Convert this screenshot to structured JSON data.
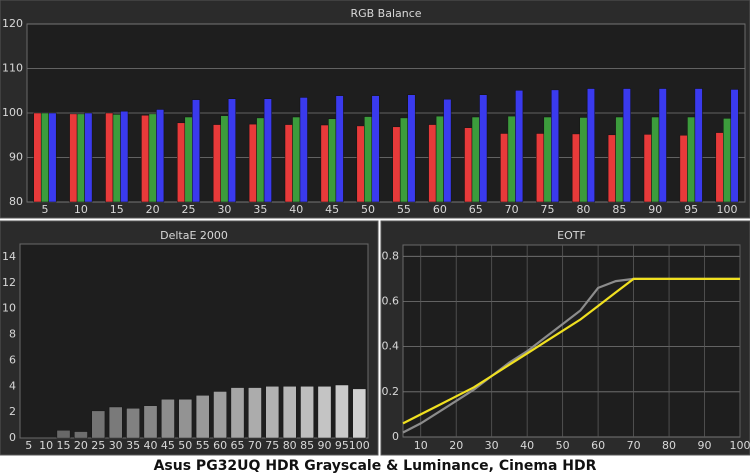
{
  "caption": "Asus PG32UQ HDR Grayscale & Luminance, Cinema HDR",
  "chart_data": [
    {
      "type": "bar",
      "title": "RGB Balance",
      "categories": [
        "5",
        "10",
        "15",
        "20",
        "25",
        "30",
        "35",
        "40",
        "45",
        "50",
        "55",
        "60",
        "65",
        "70",
        "75",
        "80",
        "85",
        "90",
        "95",
        "100"
      ],
      "series": [
        {
          "color": "#e83a3a",
          "values": [
            100,
            99.8,
            100,
            99.5,
            97.8,
            97.4,
            97.5,
            97.4,
            97.3,
            97.1,
            96.9,
            97.4,
            96.7,
            95.4,
            95.4,
            95.3,
            95.1,
            95.2,
            95.0,
            95.6
          ]
        },
        {
          "color": "#3c9c3c",
          "values": [
            100,
            99.8,
            99.7,
            99.8,
            99.1,
            99.4,
            98.9,
            99.1,
            98.7,
            99.2,
            98.9,
            99.3,
            99.1,
            99.3,
            99.1,
            99.0,
            99.1,
            99.1,
            99.1,
            98.8
          ]
        },
        {
          "color": "#3a3aee",
          "values": [
            100,
            100,
            100.4,
            100.8,
            103,
            103.2,
            103.2,
            103.5,
            103.9,
            103.9,
            104.1,
            103.1,
            104.1,
            105.1,
            105.2,
            105.5,
            105.5,
            105.5,
            105.5,
            105.3
          ]
        }
      ],
      "ylim": [
        80,
        120
      ],
      "yticks": [
        80,
        90,
        100,
        110,
        120
      ],
      "grid": true
    },
    {
      "type": "bar",
      "title": "DeltaE 2000",
      "categories": [
        "5",
        "10",
        "15",
        "20",
        "25",
        "30",
        "35",
        "40",
        "45",
        "50",
        "55",
        "60",
        "65",
        "70",
        "75",
        "80",
        "85",
        "90",
        "95",
        "100"
      ],
      "values": [
        0,
        0,
        0.6,
        0.5,
        2.1,
        2.4,
        2.3,
        2.5,
        3.0,
        3.0,
        3.3,
        3.6,
        3.9,
        3.9,
        4.0,
        4.0,
        4.0,
        4.0,
        4.1,
        3.8
      ],
      "color": "#d0d0d0",
      "ylim": [
        0,
        15
      ],
      "yticks": [
        0,
        2,
        4,
        6,
        8,
        10,
        12,
        14
      ],
      "grid": false
    },
    {
      "type": "line",
      "title": "EOTF",
      "x": [
        5,
        10,
        15,
        20,
        25,
        30,
        35,
        40,
        45,
        50,
        55,
        60,
        65,
        70,
        75,
        80,
        85,
        90,
        95,
        100
      ],
      "series": [
        {
          "color": "#8c8c8c",
          "values": [
            0.02,
            0.06,
            0.11,
            0.16,
            0.21,
            0.27,
            0.33,
            0.38,
            0.44,
            0.5,
            0.56,
            0.66,
            0.69,
            0.7,
            0.7,
            0.7,
            0.7,
            0.7,
            0.7,
            0.7
          ]
        },
        {
          "color": "#f0e020",
          "values": [
            0.06,
            0.1,
            0.14,
            0.18,
            0.22,
            0.27,
            0.32,
            0.37,
            0.42,
            0.47,
            0.52,
            0.58,
            0.64,
            0.7,
            0.7,
            0.7,
            0.7,
            0.7,
            0.7,
            0.7
          ]
        }
      ],
      "xlim": [
        5,
        100
      ],
      "xticks": [
        10,
        20,
        30,
        40,
        50,
        60,
        70,
        80,
        90,
        100
      ],
      "ylim": [
        0,
        0.85
      ],
      "yticks": [
        0,
        0.2,
        0.4,
        0.6,
        0.8
      ],
      "grid": true
    }
  ]
}
